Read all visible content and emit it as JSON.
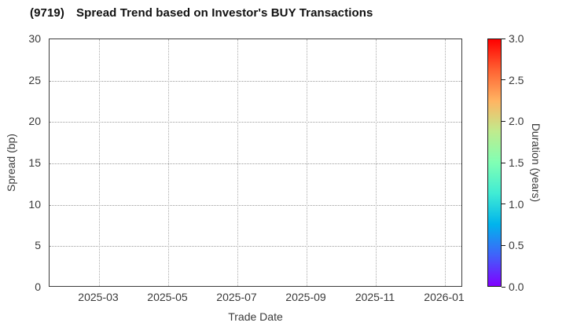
{
  "header": {
    "code": "(9719)",
    "title": "Spread Trend based on Investor's BUY Transactions"
  },
  "chart_data": {
    "type": "scatter",
    "title": "(9719) Spread Trend based on Investor's BUY Transactions",
    "xlabel": "Trade Date",
    "ylabel": "Spread (bp)",
    "x_tick_labels": [
      "2025-03",
      "2025-05",
      "2025-07",
      "2025-09",
      "2025-11",
      "2026-01"
    ],
    "y_tick_labels": [
      "0",
      "5",
      "10",
      "15",
      "20",
      "25",
      "30"
    ],
    "y_grid_values": [
      5,
      10,
      15,
      20,
      25
    ],
    "ylim": [
      0,
      30
    ],
    "grid": "dotted, horizontal and vertical, on",
    "legend": "none",
    "series": [],
    "points": [],
    "note": "no data points plotted - empty axes",
    "colorbar": {
      "label": "Duration (years)",
      "tick_labels": [
        "3.0",
        "2.5",
        "2.0",
        "1.5",
        "1.0",
        "0.5",
        "0.0"
      ],
      "range": [
        0.0,
        3.0
      ],
      "colormap": "rainbow",
      "colors_bottom_to_top": [
        "#8000ff",
        "#00b4ec",
        "#80ffb4",
        "#ffb462",
        "#ff0000"
      ]
    }
  },
  "colors": {
    "background": "#ffffff",
    "title_text": "#111111",
    "tick_text": "#3a3a3a",
    "axis_spine": "#3c3c3c",
    "gridline": "#a0a0a0"
  }
}
